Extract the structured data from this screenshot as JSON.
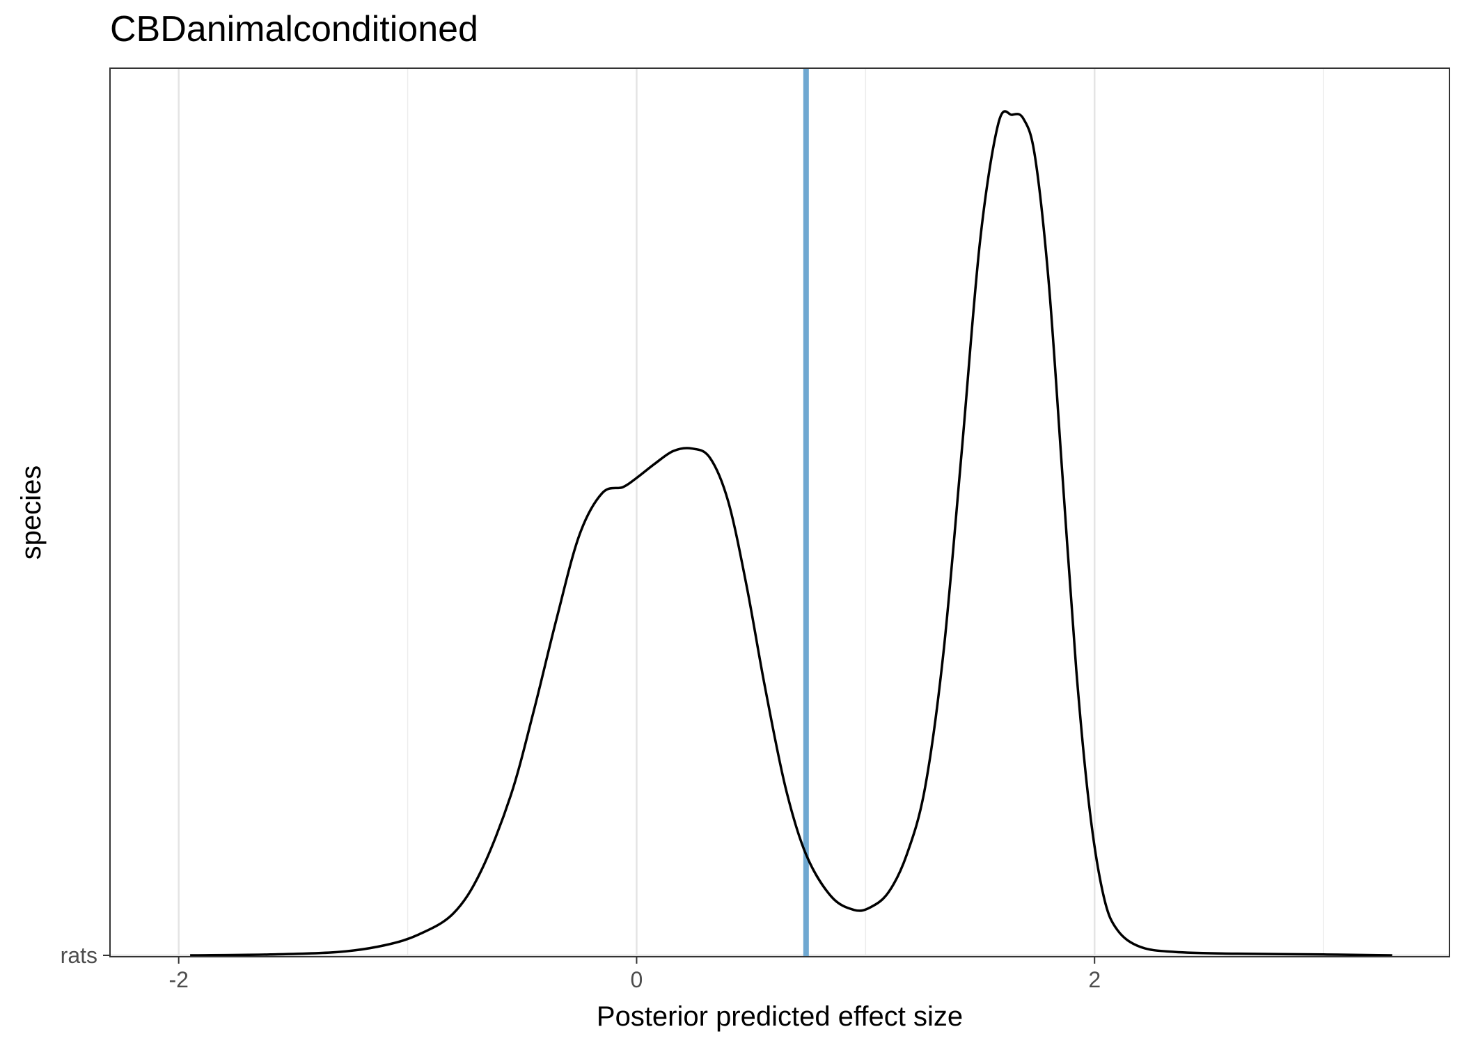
{
  "chart_data": {
    "type": "density",
    "title": "CBDanimalconditioned",
    "xlabel": "Posterior predicted effect size",
    "ylabel": "species",
    "xlim": [
      -2.3,
      3.55
    ],
    "x_ticks": [
      -2,
      0,
      2
    ],
    "x_tick_labels": [
      "-2",
      "0",
      "2"
    ],
    "x_minor_gridlines": [
      -1,
      1,
      3
    ],
    "y_categories": [
      "rats"
    ],
    "grid": true,
    "reference_line": {
      "x": 0.74,
      "color": "#6fa8d1"
    },
    "series": [
      {
        "category": "rats",
        "color": "#000000",
        "x": [
          -1.95,
          -1.6,
          -1.3,
          -1.1,
          -0.95,
          -0.8,
          -0.68,
          -0.55,
          -0.45,
          -0.35,
          -0.25,
          -0.15,
          -0.06,
          0.0,
          0.08,
          0.16,
          0.24,
          0.32,
          0.4,
          0.48,
          0.56,
          0.65,
          0.74,
          0.85,
          0.95,
          1.02,
          1.1,
          1.18,
          1.26,
          1.34,
          1.42,
          1.5,
          1.58,
          1.64,
          1.69,
          1.74,
          1.8,
          1.86,
          1.92,
          1.98,
          2.04,
          2.1,
          2.2,
          2.35,
          2.6,
          3.0,
          3.3
        ],
        "y": [
          0.0,
          0.001,
          0.004,
          0.012,
          0.025,
          0.05,
          0.1,
          0.19,
          0.29,
          0.4,
          0.5,
          0.55,
          0.557,
          0.568,
          0.585,
          0.6,
          0.603,
          0.592,
          0.54,
          0.44,
          0.32,
          0.2,
          0.12,
          0.07,
          0.054,
          0.057,
          0.075,
          0.12,
          0.2,
          0.36,
          0.6,
          0.85,
          0.99,
          1.0,
          0.995,
          0.95,
          0.8,
          0.57,
          0.34,
          0.17,
          0.07,
          0.03,
          0.01,
          0.004,
          0.002,
          0.001,
          0.0
        ]
      }
    ]
  }
}
